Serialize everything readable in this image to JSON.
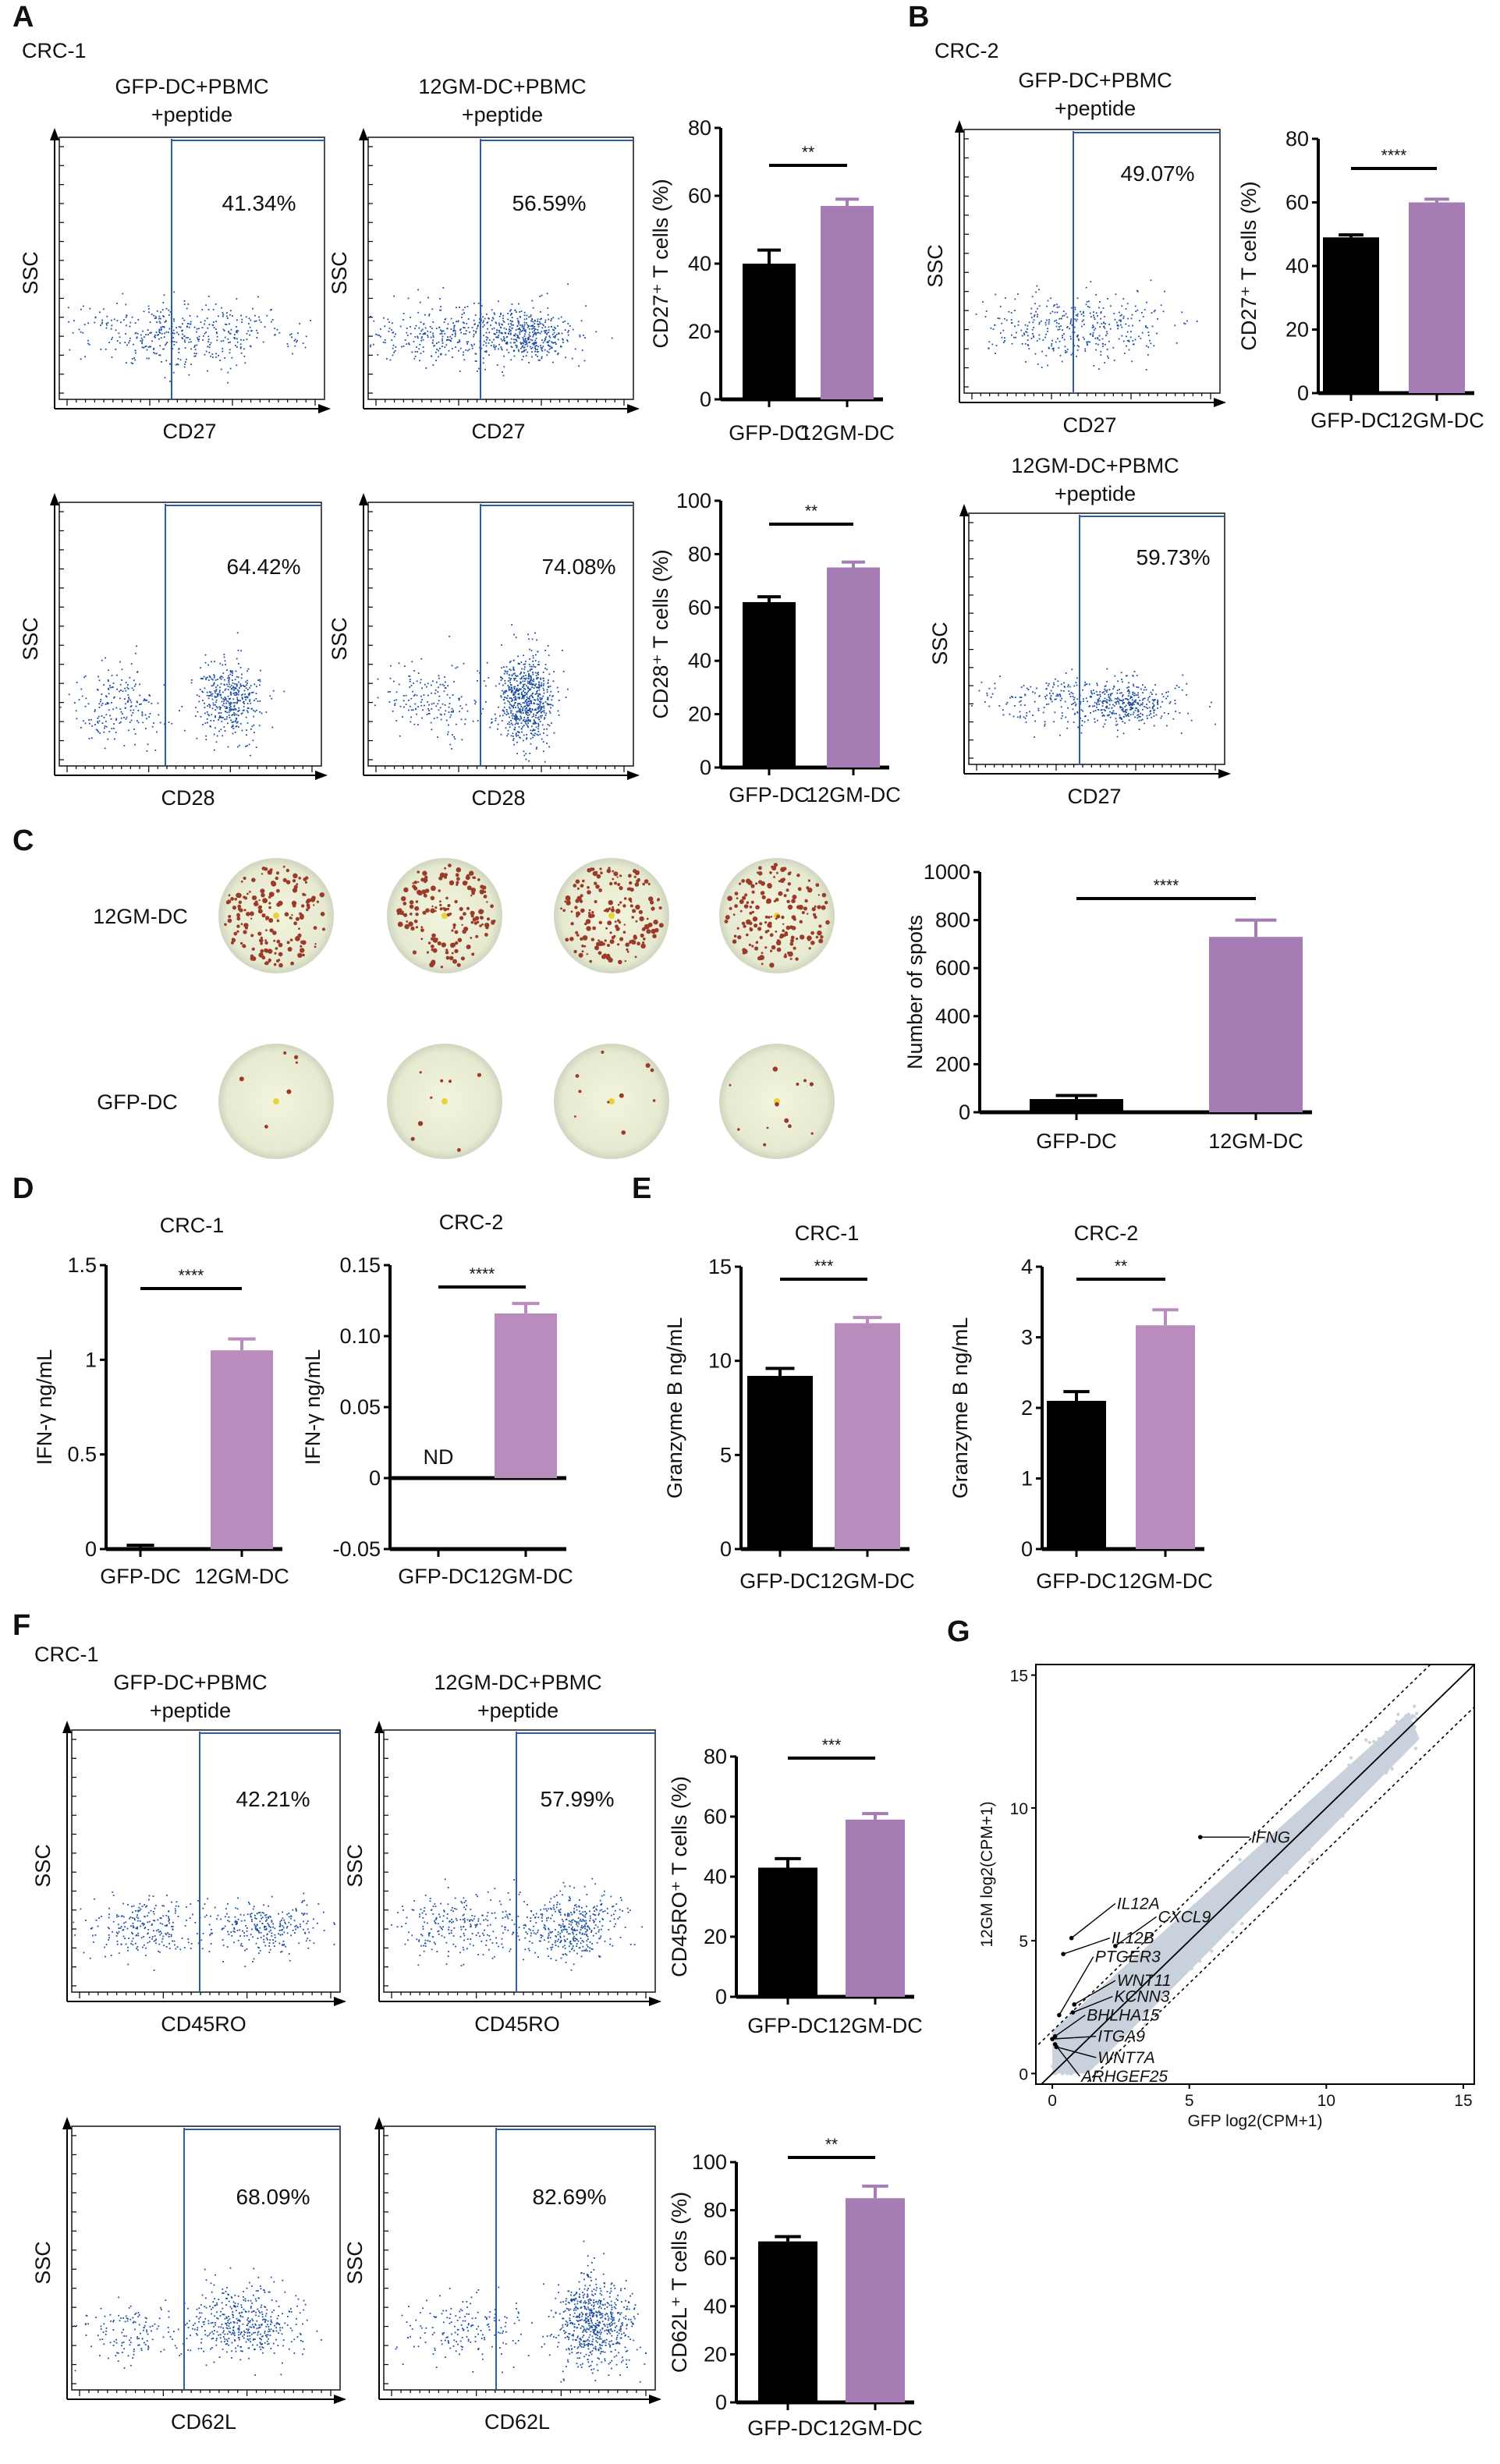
{
  "panel_labels": {
    "A": "A",
    "B": "B",
    "C": "C",
    "D": "D",
    "E": "E",
    "F": "F",
    "G": "G"
  },
  "sample_labels": {
    "A": "CRC-1",
    "B": "CRC-2",
    "F": "CRC-1"
  },
  "flow_plots": [
    {
      "title": [
        "GFP-DC+PBMC",
        "+peptide"
      ],
      "xlabel": "CD27",
      "ylabel": "SSC",
      "percent": "41.34%"
    },
    {
      "title": [
        "12GM-DC+PBMC",
        "+peptide"
      ],
      "xlabel": "CD27",
      "ylabel": "SSC",
      "percent": "56.59%"
    },
    {
      "title": [
        "",
        ""
      ],
      "xlabel": "CD28",
      "ylabel": "SSC",
      "percent": "64.42%"
    },
    {
      "title": [
        "",
        ""
      ],
      "xlabel": "CD28",
      "ylabel": "SSC",
      "percent": "74.08%"
    },
    {
      "title": [
        "GFP-DC+PBMC",
        "+peptide"
      ],
      "xlabel": "CD27",
      "ylabel": "SSC",
      "percent": "49.07%"
    },
    {
      "title": [
        "12GM-DC+PBMC",
        "+peptide"
      ],
      "xlabel": "CD27",
      "ylabel": "SSC",
      "percent": "59.73%"
    },
    {
      "title": [
        "GFP-DC+PBMC",
        "+peptide"
      ],
      "xlabel": "CD45RO",
      "ylabel": "SSC",
      "percent": "42.21%"
    },
    {
      "title": [
        "12GM-DC+PBMC",
        "+peptide"
      ],
      "xlabel": "CD45RO",
      "ylabel": "SSC",
      "percent": "57.99%"
    },
    {
      "title": [
        "",
        ""
      ],
      "xlabel": "CD62L",
      "ylabel": "SSC",
      "percent": "68.09%"
    },
    {
      "title": [
        "",
        ""
      ],
      "xlabel": "CD62L",
      "ylabel": "SSC",
      "percent": "82.69%"
    }
  ],
  "elispot": {
    "row_labels": [
      "12GM-DC",
      "GFP-DC"
    ]
  },
  "colors": {
    "gfp": "#000000",
    "gm_a": "#a57cb4",
    "gm_d": "#b98cbd",
    "gate": "#2a5cb0",
    "dots": "#1f4fa0",
    "cloud": "#c9d2dc"
  },
  "chart_data": [
    {
      "type": "bar",
      "title": "",
      "ylabel": "CD27⁺ T cells (%)",
      "categories": [
        "GFP-DC",
        "12GM-DC"
      ],
      "values": [
        40,
        57
      ],
      "errors": [
        4,
        2
      ],
      "ylim": [
        0,
        80
      ],
      "yticks": [
        "0",
        "20",
        "40",
        "60",
        "80"
      ],
      "significance": "**"
    },
    {
      "type": "bar",
      "title": "",
      "ylabel": "CD28⁺ T cells (%)",
      "categories": [
        "GFP-DC",
        "12GM-DC"
      ],
      "values": [
        62,
        75
      ],
      "errors": [
        2,
        2
      ],
      "ylim": [
        0,
        100
      ],
      "yticks": [
        "0",
        "20",
        "40",
        "60",
        "80",
        "100"
      ],
      "significance": "**"
    },
    {
      "type": "bar",
      "title": "",
      "ylabel": "CD27⁺ T cells (%)",
      "categories": [
        "GFP-DC",
        "12GM-DC"
      ],
      "values": [
        49,
        60
      ],
      "errors": [
        0.8,
        1
      ],
      "ylim": [
        0,
        80
      ],
      "yticks": [
        "0",
        "20",
        "40",
        "60",
        "80"
      ],
      "significance": "****"
    },
    {
      "type": "bar",
      "title": "",
      "ylabel": "Number of spots",
      "categories": [
        "GFP-DC",
        "12GM-DC"
      ],
      "values": [
        55,
        730
      ],
      "errors": [
        15,
        70
      ],
      "ylim": [
        0,
        1000
      ],
      "yticks": [
        "0",
        "200",
        "400",
        "600",
        "800",
        "1000"
      ],
      "significance": "****"
    },
    {
      "type": "bar",
      "title": "CRC-1",
      "ylabel": "IFN-γ ng/mL",
      "categories": [
        "GFP-DC",
        "12GM-DC"
      ],
      "values": [
        0.01,
        1.05
      ],
      "errors": [
        0.01,
        0.06
      ],
      "ylim": [
        0,
        1.5
      ],
      "yticks": [
        "0",
        "0.5",
        "1",
        "1.5"
      ],
      "significance": "****"
    },
    {
      "type": "bar",
      "title": "CRC-2",
      "ylabel": "IFN-γ ng/mL",
      "categories": [
        "GFP-DC",
        "12GM-DC"
      ],
      "values": [
        0,
        0.116
      ],
      "errors": [
        0,
        0.007
      ],
      "ylim": [
        -0.05,
        0.15
      ],
      "yticks": [
        "-0.05",
        "0",
        "0.05",
        "0.10",
        "0.15"
      ],
      "significance": "****",
      "annotations": [
        "ND",
        ""
      ]
    },
    {
      "type": "bar",
      "title": "CRC-1",
      "ylabel": "Granzyme B ng/mL",
      "categories": [
        "GFP-DC",
        "12GM-DC"
      ],
      "values": [
        9.2,
        12.0
      ],
      "errors": [
        0.4,
        0.3
      ],
      "ylim": [
        0,
        15
      ],
      "yticks": [
        "0",
        "5",
        "10",
        "15"
      ],
      "significance": "***"
    },
    {
      "type": "bar",
      "title": "CRC-2",
      "ylabel": "Granzyme B ng/mL",
      "categories": [
        "GFP-DC",
        "12GM-DC"
      ],
      "values": [
        2.1,
        3.17
      ],
      "errors": [
        0.13,
        0.22
      ],
      "ylim": [
        0,
        4
      ],
      "yticks": [
        "0",
        "1",
        "2",
        "3",
        "4"
      ],
      "significance": "**"
    },
    {
      "type": "bar",
      "title": "",
      "ylabel": "CD45RO⁺ T cells (%)",
      "categories": [
        "GFP-DC",
        "12GM-DC"
      ],
      "values": [
        43,
        59
      ],
      "errors": [
        3,
        2
      ],
      "ylim": [
        0,
        80
      ],
      "yticks": [
        "0",
        "20",
        "40",
        "60",
        "80"
      ],
      "significance": "***"
    },
    {
      "type": "bar",
      "title": "",
      "ylabel": "CD62L⁺ T cells (%)",
      "categories": [
        "GFP-DC",
        "12GM-DC"
      ],
      "values": [
        67,
        85
      ],
      "errors": [
        2,
        5
      ],
      "ylim": [
        0,
        100
      ],
      "yticks": [
        "0",
        "20",
        "40",
        "60",
        "80",
        "100"
      ],
      "significance": "**"
    },
    {
      "type": "scatter",
      "title": "",
      "xlabel": "GFP log2(CPM+1)",
      "ylabel": "12GM log2(CPM+1)",
      "xlim": [
        -0.6,
        15.4
      ],
      "ylim": [
        -0.4,
        15.4
      ],
      "xticks": [
        "0",
        "5",
        "10",
        "15"
      ],
      "yticks": [
        "0",
        "5",
        "10",
        "15"
      ],
      "fold_band": 1.6,
      "highlighted_genes": [
        {
          "name": "IFNG",
          "x": 5.4,
          "y": 8.9,
          "label_x": 7.2,
          "label_y": 8.9
        },
        {
          "name": "IL12A",
          "x": 0.7,
          "y": 5.1,
          "label_x": 2.3,
          "label_y": 6.4
        },
        {
          "name": "CXCL9",
          "x": 2.3,
          "y": 4.8,
          "label_x": 3.8,
          "label_y": 5.9
        },
        {
          "name": "IL12B",
          "x": 0.4,
          "y": 4.5,
          "label_x": 2.1,
          "label_y": 5.1
        },
        {
          "name": "PTGER3",
          "x": 0.25,
          "y": 2.2,
          "label_x": 1.5,
          "label_y": 4.4
        },
        {
          "name": "WNT11",
          "x": 0.8,
          "y": 2.6,
          "label_x": 2.3,
          "label_y": 3.5
        },
        {
          "name": "KCNN3",
          "x": 0.75,
          "y": 2.3,
          "label_x": 2.2,
          "label_y": 2.9
        },
        {
          "name": "BHLHA15",
          "x": 0.1,
          "y": 1.4,
          "label_x": 1.2,
          "label_y": 2.2
        },
        {
          "name": "ITGA9",
          "x": 0.0,
          "y": 1.3,
          "label_x": 1.6,
          "label_y": 1.4
        },
        {
          "name": "WNT7A",
          "x": 0.15,
          "y": 1.0,
          "label_x": 1.6,
          "label_y": 0.6
        },
        {
          "name": "ARHGEF25",
          "x": 0.1,
          "y": 1.1,
          "label_x": 1.0,
          "label_y": -0.1
        }
      ]
    }
  ]
}
